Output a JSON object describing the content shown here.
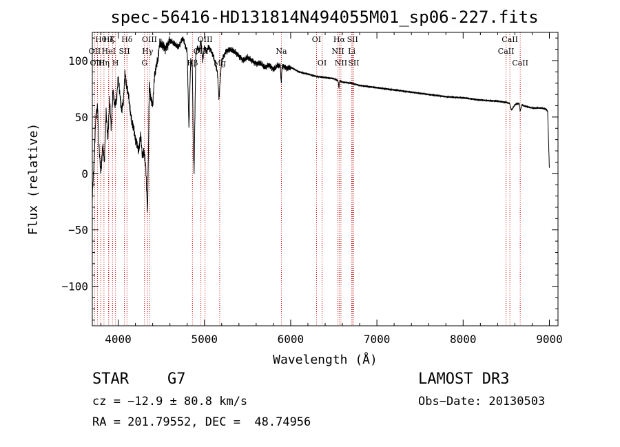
{
  "chart_data": {
    "type": "line",
    "title": "spec-56416-HD131814N494055M01_sp06-227.fits",
    "xlabel": "Wavelength (Å)",
    "ylabel": "Flux (relative)",
    "xlim": [
      3700,
      9100
    ],
    "ylim": [
      -135,
      125
    ],
    "xticks": [
      4000,
      5000,
      6000,
      7000,
      8000,
      9000
    ],
    "xtick_labels": [
      "4000",
      "5000",
      "6000",
      "7000",
      "8000",
      "9000"
    ],
    "yticks": [
      -100,
      -50,
      0,
      50,
      100
    ],
    "ytick_labels": [
      "−100",
      "−50",
      "0",
      "50",
      "100"
    ],
    "series": [
      {
        "name": "spectrum",
        "x": [
          3700,
          3720,
          3740,
          3760,
          3780,
          3800,
          3820,
          3840,
          3860,
          3880,
          3900,
          3920,
          3940,
          3960,
          3980,
          4000,
          4020,
          4040,
          4060,
          4080,
          4100,
          4120,
          4140,
          4160,
          4180,
          4200,
          4220,
          4240,
          4260,
          4280,
          4300,
          4320,
          4340,
          4350,
          4360,
          4380,
          4400,
          4420,
          4440,
          4460,
          4480,
          4500,
          4550,
          4600,
          4650,
          4700,
          4750,
          4800,
          4820,
          4840,
          4860,
          4870,
          4880,
          4900,
          4920,
          4940,
          4960,
          4980,
          5000,
          5020,
          5050,
          5100,
          5150,
          5170,
          5180,
          5200,
          5250,
          5300,
          5350,
          5400,
          5450,
          5500,
          5550,
          5600,
          5650,
          5700,
          5750,
          5800,
          5850,
          5880,
          5890,
          5900,
          5920,
          5950,
          6000,
          6100,
          6200,
          6300,
          6400,
          6500,
          6550,
          6560,
          6570,
          6600,
          6700,
          6800,
          6900,
          7000,
          7200,
          7400,
          7600,
          7800,
          8000,
          8200,
          8400,
          8500,
          8540,
          8560,
          8600,
          8650,
          8662,
          8680,
          8700,
          8800,
          8900,
          8960,
          8980,
          8990,
          9000
        ],
        "y": [
          -20,
          10,
          50,
          60,
          20,
          0,
          25,
          10,
          55,
          30,
          65,
          40,
          75,
          60,
          65,
          85,
          70,
          55,
          65,
          90,
          75,
          70,
          55,
          45,
          40,
          30,
          25,
          20,
          35,
          15,
          20,
          5,
          -35,
          15,
          80,
          65,
          60,
          85,
          95,
          100,
          115,
          115,
          110,
          118,
          115,
          112,
          120,
          108,
          40,
          100,
          95,
          30,
          0,
          105,
          112,
          108,
          118,
          100,
          112,
          108,
          112,
          105,
          90,
          65,
          80,
          100,
          108,
          110,
          108,
          104,
          100,
          103,
          100,
          97,
          98,
          94,
          96,
          92,
          96,
          95,
          80,
          94,
          95,
          93,
          94,
          90,
          88,
          86,
          85,
          84,
          82,
          76,
          82,
          81,
          80,
          78,
          77,
          76,
          74,
          72,
          70,
          68,
          67,
          65,
          64,
          63,
          62,
          56,
          61,
          62,
          55,
          61,
          60,
          58,
          58,
          57,
          55,
          30,
          5
        ]
      }
    ],
    "lines": [
      {
        "label": "Hθ",
        "x": 3798,
        "row": 0
      },
      {
        "label": "OII",
        "x": 3727,
        "row": 1
      },
      {
        "label": "OIII",
        "x": 3760,
        "row": 2
      },
      {
        "label": "Hη",
        "x": 3835,
        "row": 2
      },
      {
        "label": "Hζ",
        "x": 3889,
        "row": 0
      },
      {
        "label": "HeI",
        "x": 3890,
        "row": 1
      },
      {
        "label": "K",
        "x": 3934,
        "row": 0
      },
      {
        "label": "H",
        "x": 3969,
        "row": 2
      },
      {
        "label": "SII",
        "x": 4072,
        "row": 1
      },
      {
        "label": "Hδ",
        "x": 4102,
        "row": 0
      },
      {
        "label": "G",
        "x": 4305,
        "row": 2
      },
      {
        "label": "OIII",
        "x": 4363,
        "row": 0
      },
      {
        "label": "Hγ",
        "x": 4341,
        "row": 1
      },
      {
        "label": "Hβ",
        "x": 4861,
        "row": 2
      },
      {
        "label": "OIII",
        "x": 4959,
        "row": 1
      },
      {
        "label": "OIII",
        "x": 5007,
        "row": 0
      },
      {
        "label": "Mg",
        "x": 5177,
        "row": 2
      },
      {
        "label": "Na",
        "x": 5893,
        "row": 1
      },
      {
        "label": "OI",
        "x": 6300,
        "row": 0
      },
      {
        "label": "OI",
        "x": 6364,
        "row": 2
      },
      {
        "label": "Hα",
        "x": 6563,
        "row": 0
      },
      {
        "label": "NII",
        "x": 6548,
        "row": 1
      },
      {
        "label": "NII",
        "x": 6583,
        "row": 2
      },
      {
        "label": "SII",
        "x": 6717,
        "row": 0
      },
      {
        "label": "Li",
        "x": 6708,
        "row": 1
      },
      {
        "label": "SII",
        "x": 6731,
        "row": 2
      },
      {
        "label": "CaII",
        "x": 8542,
        "row": 0
      },
      {
        "label": "CaII",
        "x": 8498,
        "row": 1
      },
      {
        "label": "CaII",
        "x": 8662,
        "row": 2
      }
    ]
  },
  "info": {
    "object_type": "STAR",
    "subclass": "G7",
    "survey": "LAMOST DR3",
    "cz": "cz = −12.9 ± 80.8 km/s",
    "obs_date": "Obs−Date: 20130503",
    "radec": "RA = 201.79552, DEC =  48.74956"
  },
  "colors": {
    "spectrum": "#000000",
    "line_markers": "#cc0000"
  }
}
